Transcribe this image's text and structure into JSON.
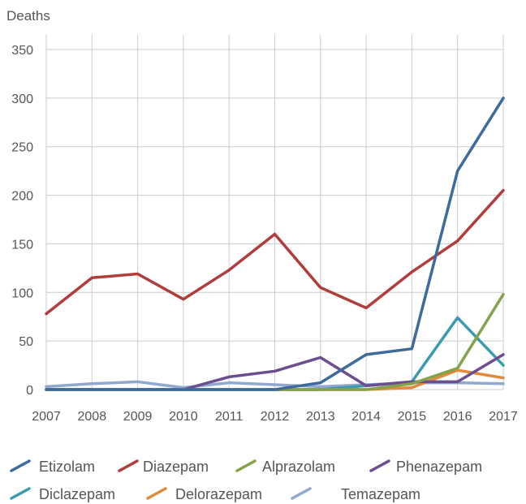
{
  "chart_data": {
    "type": "line",
    "ylabel": "Deaths",
    "xlabel": "",
    "x": [
      "2007",
      "2008",
      "2009",
      "2010",
      "2011",
      "2012",
      "2013",
      "2014",
      "2015",
      "2016",
      "2017"
    ],
    "ylim": [
      0,
      350
    ],
    "yticks": [
      "0",
      "50",
      "100",
      "150",
      "200",
      "250",
      "300",
      "350"
    ],
    "grid": true,
    "legend_position": "bottom",
    "series": [
      {
        "name": "Etizolam",
        "color": "#3E6A9C",
        "values": [
          0,
          0,
          0,
          0,
          0,
          0,
          7,
          36,
          42,
          225,
          300
        ]
      },
      {
        "name": "Diazepam",
        "color": "#B03C3C",
        "values": [
          78,
          115,
          119,
          93,
          123,
          160,
          105,
          84,
          121,
          153,
          205
        ]
      },
      {
        "name": "Alprazolam",
        "color": "#85A24A",
        "values": [
          0,
          0,
          0,
          0,
          0,
          0,
          0,
          0,
          6,
          22,
          98
        ]
      },
      {
        "name": "Phenazepam",
        "color": "#6B4E8F",
        "values": [
          0,
          0,
          0,
          0,
          13,
          19,
          33,
          4,
          8,
          8,
          36
        ]
      },
      {
        "name": "Diclazepam",
        "color": "#3C9AAE",
        "values": [
          0,
          0,
          0,
          0,
          0,
          0,
          0,
          4,
          8,
          74,
          25
        ]
      },
      {
        "name": "Delorazepam",
        "color": "#E08A3C",
        "values": [
          0,
          0,
          0,
          0,
          0,
          0,
          0,
          0,
          2,
          20,
          12
        ]
      },
      {
        "name": "Temazepam",
        "color": "#91A8CF",
        "values": [
          3,
          6,
          8,
          2,
          7,
          5,
          3,
          5,
          7,
          7,
          6
        ]
      }
    ]
  }
}
